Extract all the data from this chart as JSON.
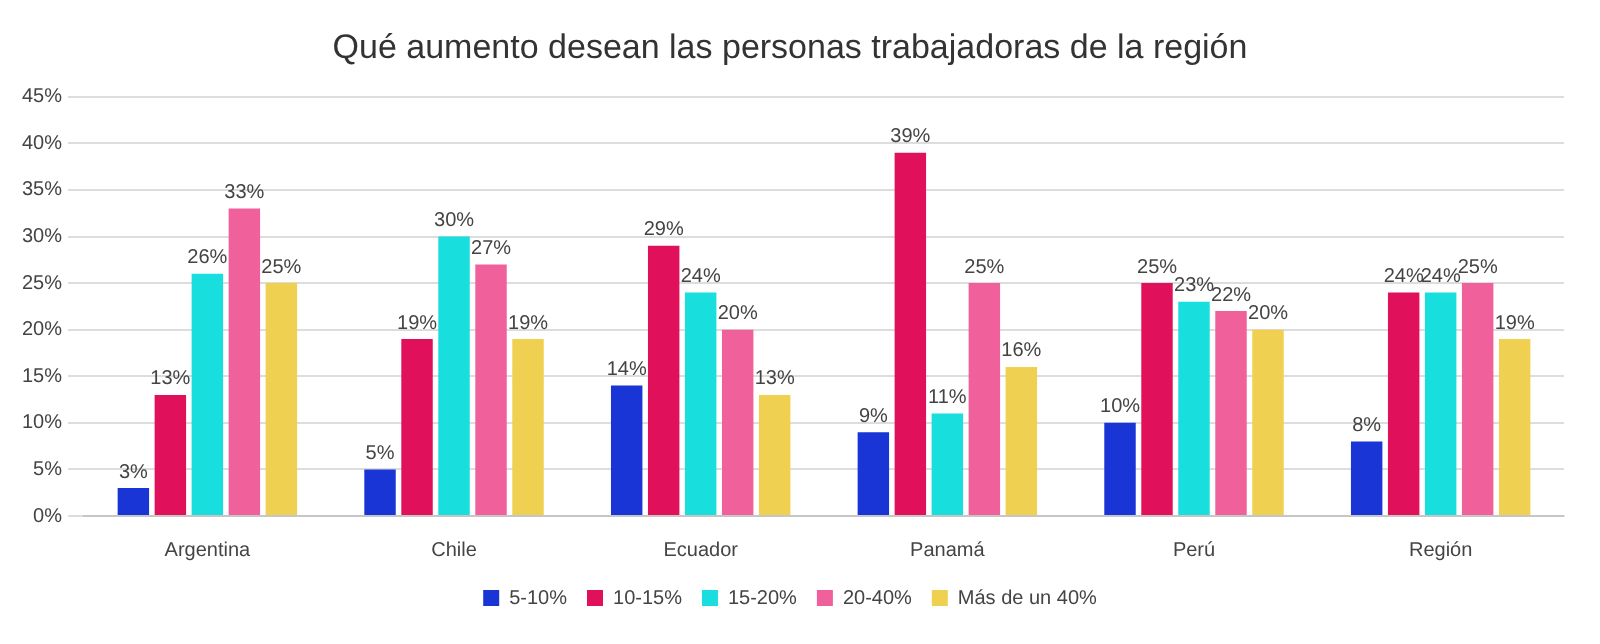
{
  "chart_data": {
    "type": "bar",
    "title": "Qué aumento desean las personas trabajadoras de la región",
    "categories": [
      "Argentina",
      "Chile",
      "Ecuador",
      "Panamá",
      "Perú",
      "Región"
    ],
    "series": [
      {
        "name": "5-10%",
        "color": "#1a35d6",
        "values": [
          3,
          5,
          14,
          9,
          10,
          8
        ],
        "value_labels": [
          "3%",
          "5%",
          "14%",
          "9%",
          "10%",
          "8%"
        ]
      },
      {
        "name": "10-15%",
        "color": "#e0105a",
        "values": [
          13,
          19,
          29,
          39,
          25,
          24
        ],
        "value_labels": [
          "13%",
          "19%",
          "29%",
          "39%",
          "25%",
          "24%"
        ]
      },
      {
        "name": "15-20%",
        "color": "#18dede",
        "values": [
          26,
          30,
          24,
          11,
          23,
          24
        ],
        "value_labels": [
          "26%",
          "30%",
          "24%",
          "11%",
          "23%",
          "24%"
        ]
      },
      {
        "name": "20-40%",
        "color": "#f0609a",
        "values": [
          33,
          27,
          20,
          25,
          22,
          25
        ],
        "value_labels": [
          "33%",
          "27%",
          "20%",
          "25%",
          "22%",
          "25%"
        ]
      },
      {
        "name": "Más de un 40%",
        "color": "#f0d050",
        "values": [
          25,
          19,
          13,
          16,
          20,
          19
        ],
        "value_labels": [
          "25%",
          "19%",
          "13%",
          "16%",
          "20%",
          "19%"
        ]
      }
    ],
    "ylim": [
      0,
      45
    ],
    "yticks": [
      {
        "value": 0,
        "label": "0%"
      },
      {
        "value": 5,
        "label": "5%"
      },
      {
        "value": 10,
        "label": "10%"
      },
      {
        "value": 15,
        "label": "15%"
      },
      {
        "value": 20,
        "label": "20%"
      },
      {
        "value": 25,
        "label": "25%"
      },
      {
        "value": 30,
        "label": "30%"
      },
      {
        "value": 35,
        "label": "35%"
      },
      {
        "value": 40,
        "label": "40%"
      },
      {
        "value": 45,
        "label": "45%"
      }
    ],
    "grid": "y",
    "legend": "bottom"
  }
}
